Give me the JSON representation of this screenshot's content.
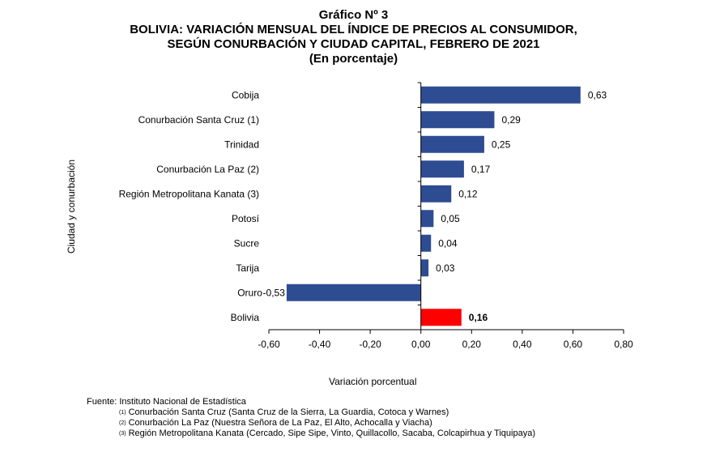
{
  "titles": {
    "line1": "Gráfico Nº 3",
    "line2": "BOLIVIA: VARIACIÓN MENSUAL DEL ÍNDICE DE PRECIOS AL CONSUMIDOR,",
    "line3": "SEGÚN CONURBACIÓN Y CIUDAD CAPITAL, FEBRERO DE 2021",
    "line4": "(En porcentaje)"
  },
  "chart_data": {
    "type": "bar",
    "orientation": "horizontal",
    "categories": [
      "Cobija",
      "Conurbación Santa Cruz (1)",
      "Trinidad",
      "Conurbación La Paz (2)",
      "Región Metropolitana Kanata (3)",
      "Potosí",
      "Sucre",
      "Tarija",
      "Oruro",
      "Bolivia"
    ],
    "values": [
      0.63,
      0.29,
      0.25,
      0.17,
      0.12,
      0.05,
      0.04,
      0.03,
      -0.53,
      0.16
    ],
    "value_labels": [
      "0,63",
      "0,29",
      "0,25",
      "0,17",
      "0,12",
      "0,05",
      "0,04",
      "0,03",
      "-0,53",
      "0,16"
    ],
    "xlim": [
      -0.6,
      0.8
    ],
    "xticks": [
      -0.6,
      -0.4,
      -0.2,
      0.0,
      0.2,
      0.4,
      0.6,
      0.8
    ],
    "xtick_labels": [
      "-0,60",
      "-0,40",
      "-0,20",
      "0,00",
      "0,20",
      "0,40",
      "0,60",
      "0,80"
    ],
    "xlabel": "Variación porcentual",
    "ylabel": "Ciudad y conurbación",
    "colors": {
      "bar": "#2E4C92",
      "highlight": "#FF0000"
    },
    "highlight_category": "Bolivia",
    "grid": false
  },
  "footer": {
    "source": "Fuente: Instituto Nacional de Estadística",
    "notes": [
      {
        "mark": "(1)",
        "text": "Conurbación Santa Cruz (Santa Cruz de la Sierra, La Guardia, Cotoca y Warnes)"
      },
      {
        "mark": "(2)",
        "text": "Conurbación La Paz (Nuestra Señora de La Paz, El Alto, Achocalla y Viacha)"
      },
      {
        "mark": "(3)",
        "text": "Región Metropolitana Kanata (Cercado, Sipe Sipe, Vinto, Quillacollo, Sacaba, Colcapirhua y Tiquipaya)"
      }
    ]
  }
}
